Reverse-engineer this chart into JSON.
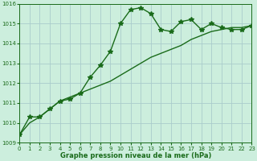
{
  "line1_x": [
    0,
    1,
    2,
    3,
    4,
    5,
    6,
    7,
    8,
    9,
    10,
    11,
    12,
    13,
    14,
    15,
    16,
    17,
    18,
    19,
    20,
    21,
    22,
    23
  ],
  "line1_y": [
    1009.4,
    1010.3,
    1010.3,
    1010.7,
    1011.1,
    1011.2,
    1011.5,
    1012.3,
    1012.9,
    1013.6,
    1015.0,
    1015.7,
    1015.8,
    1015.5,
    1014.7,
    1014.6,
    1015.1,
    1015.2,
    1014.7,
    1015.0,
    1014.8,
    1014.7,
    1014.7,
    1014.9
  ],
  "line2_x": [
    0,
    1,
    2,
    3,
    4,
    5,
    6,
    7,
    8,
    9,
    10,
    11,
    12,
    13,
    14,
    15,
    16,
    17,
    18,
    19,
    20,
    21,
    22,
    23
  ],
  "line2_y": [
    1009.4,
    1010.0,
    1010.3,
    1010.7,
    1011.1,
    1011.3,
    1011.5,
    1011.7,
    1011.9,
    1012.1,
    1012.4,
    1012.7,
    1013.0,
    1013.3,
    1013.5,
    1013.7,
    1013.9,
    1014.2,
    1014.4,
    1014.6,
    1014.7,
    1014.8,
    1014.8,
    1014.9
  ],
  "line_color": "#1a6b1a",
  "bg_color": "#cceedd",
  "grid_color": "#aacccc",
  "xlabel": "Graphe pression niveau de la mer (hPa)",
  "ylim": [
    1009,
    1016
  ],
  "xlim": [
    0,
    23
  ],
  "yticks": [
    1009,
    1010,
    1011,
    1012,
    1013,
    1014,
    1015,
    1016
  ],
  "xticks": [
    0,
    1,
    2,
    3,
    4,
    5,
    6,
    7,
    8,
    9,
    10,
    11,
    12,
    13,
    14,
    15,
    16,
    17,
    18,
    19,
    20,
    21,
    22,
    23
  ],
  "marker": "*",
  "marker_size": 4,
  "line_width": 1.0,
  "xlabel_fontsize": 6.0,
  "tick_labelsize": 5.0
}
